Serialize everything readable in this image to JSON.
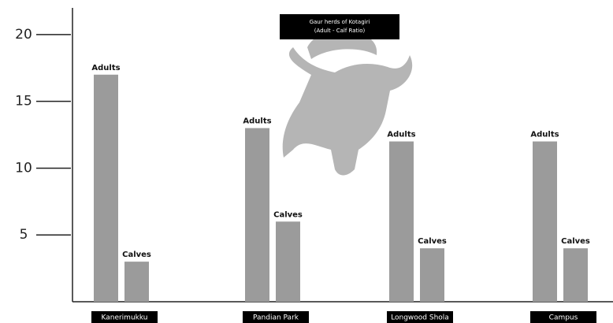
{
  "chart_data": {
    "type": "bar",
    "title": "Gaur herds of Kotagiri",
    "subtitle": "(Adult - Calf Ratio)",
    "categories": [
      "Kanerimukku",
      "Pandian Park",
      "Longwood Shola",
      "Campus"
    ],
    "series": [
      {
        "name": "Adults",
        "color": "#9b9b9b",
        "values": [
          17,
          13,
          12,
          12
        ]
      },
      {
        "name": "Calves",
        "color": "#9b9b9b",
        "values": [
          3,
          6,
          4,
          4
        ]
      }
    ],
    "ylim": [
      0,
      22
    ],
    "yticks": [
      5,
      10,
      15,
      20
    ]
  }
}
